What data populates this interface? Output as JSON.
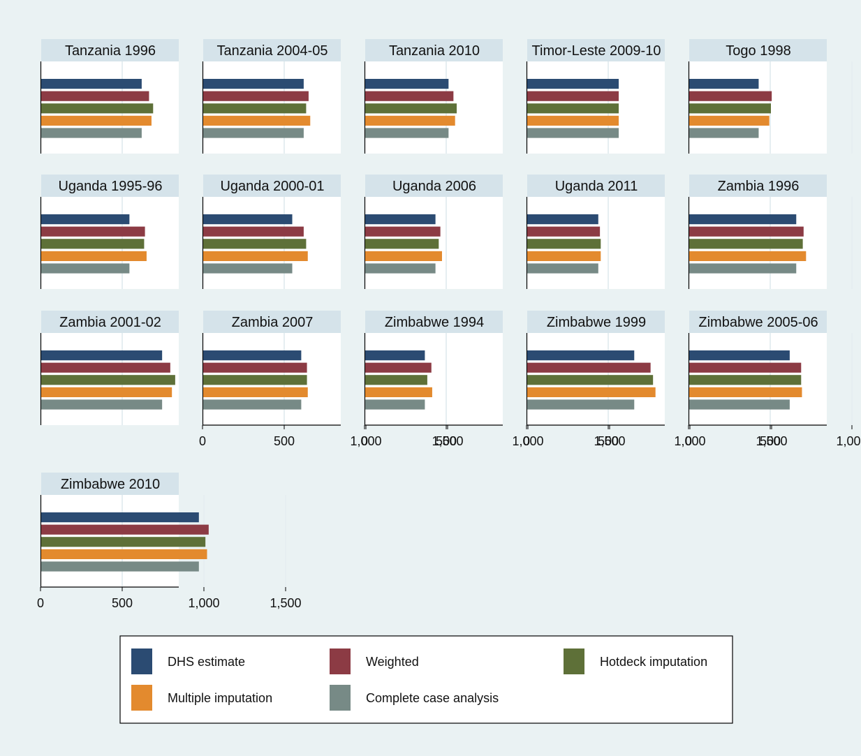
{
  "chart_data": {
    "type": "bar",
    "orientation": "horizontal",
    "xlim": [
      0,
      1700
    ],
    "x_ticks": [
      0,
      500,
      1000,
      1500
    ],
    "x_tick_labels": [
      "0",
      "500",
      "1,000",
      "1,500"
    ],
    "grid": true,
    "legend_position": "bottom",
    "series": [
      {
        "name": "DHS estimate",
        "color": "#2b4b72"
      },
      {
        "name": "Weighted",
        "color": "#8c3b44"
      },
      {
        "name": "Hotdeck imputation",
        "color": "#5e7038"
      },
      {
        "name": "Multiple imputation",
        "color": "#e38a2e"
      },
      {
        "name": "Complete case analysis",
        "color": "#778a86"
      }
    ],
    "panels": [
      {
        "title": "Tanzania 1996",
        "values": [
          615,
          660,
          685,
          675,
          615
        ]
      },
      {
        "title": "Tanzania 2004-05",
        "values": [
          615,
          645,
          630,
          655,
          615
        ]
      },
      {
        "title": "Tanzania 2010",
        "values": [
          510,
          540,
          560,
          550,
          510
        ]
      },
      {
        "title": "Timor-Leste 2009-10",
        "values": [
          560,
          560,
          560,
          560,
          560
        ]
      },
      {
        "title": "Togo 1998",
        "values": [
          425,
          505,
          500,
          490,
          425
        ]
      },
      {
        "title": "Uganda 1995-96",
        "values": [
          540,
          635,
          630,
          645,
          540
        ]
      },
      {
        "title": "Uganda 2000-01",
        "values": [
          545,
          615,
          630,
          640,
          545
        ]
      },
      {
        "title": "Uganda 2006",
        "values": [
          430,
          460,
          450,
          470,
          430
        ]
      },
      {
        "title": "Uganda 2011",
        "values": [
          435,
          445,
          450,
          450,
          435
        ]
      },
      {
        "title": "Zambia 1996",
        "values": [
          655,
          700,
          695,
          715,
          655
        ]
      },
      {
        "title": "Zambia 2001-02",
        "values": [
          740,
          790,
          820,
          800,
          740
        ]
      },
      {
        "title": "Zambia 2007",
        "values": [
          600,
          635,
          635,
          640,
          600
        ]
      },
      {
        "title": "Zimbabwe 1994",
        "values": [
          365,
          405,
          380,
          410,
          365
        ]
      },
      {
        "title": "Zimbabwe 1999",
        "values": [
          655,
          755,
          770,
          785,
          655
        ]
      },
      {
        "title": "Zimbabwe 2005-06",
        "values": [
          615,
          685,
          685,
          690,
          615
        ]
      },
      {
        "title": "Zimbabwe 2010",
        "values": [
          965,
          1025,
          1005,
          1015,
          965
        ]
      }
    ]
  }
}
